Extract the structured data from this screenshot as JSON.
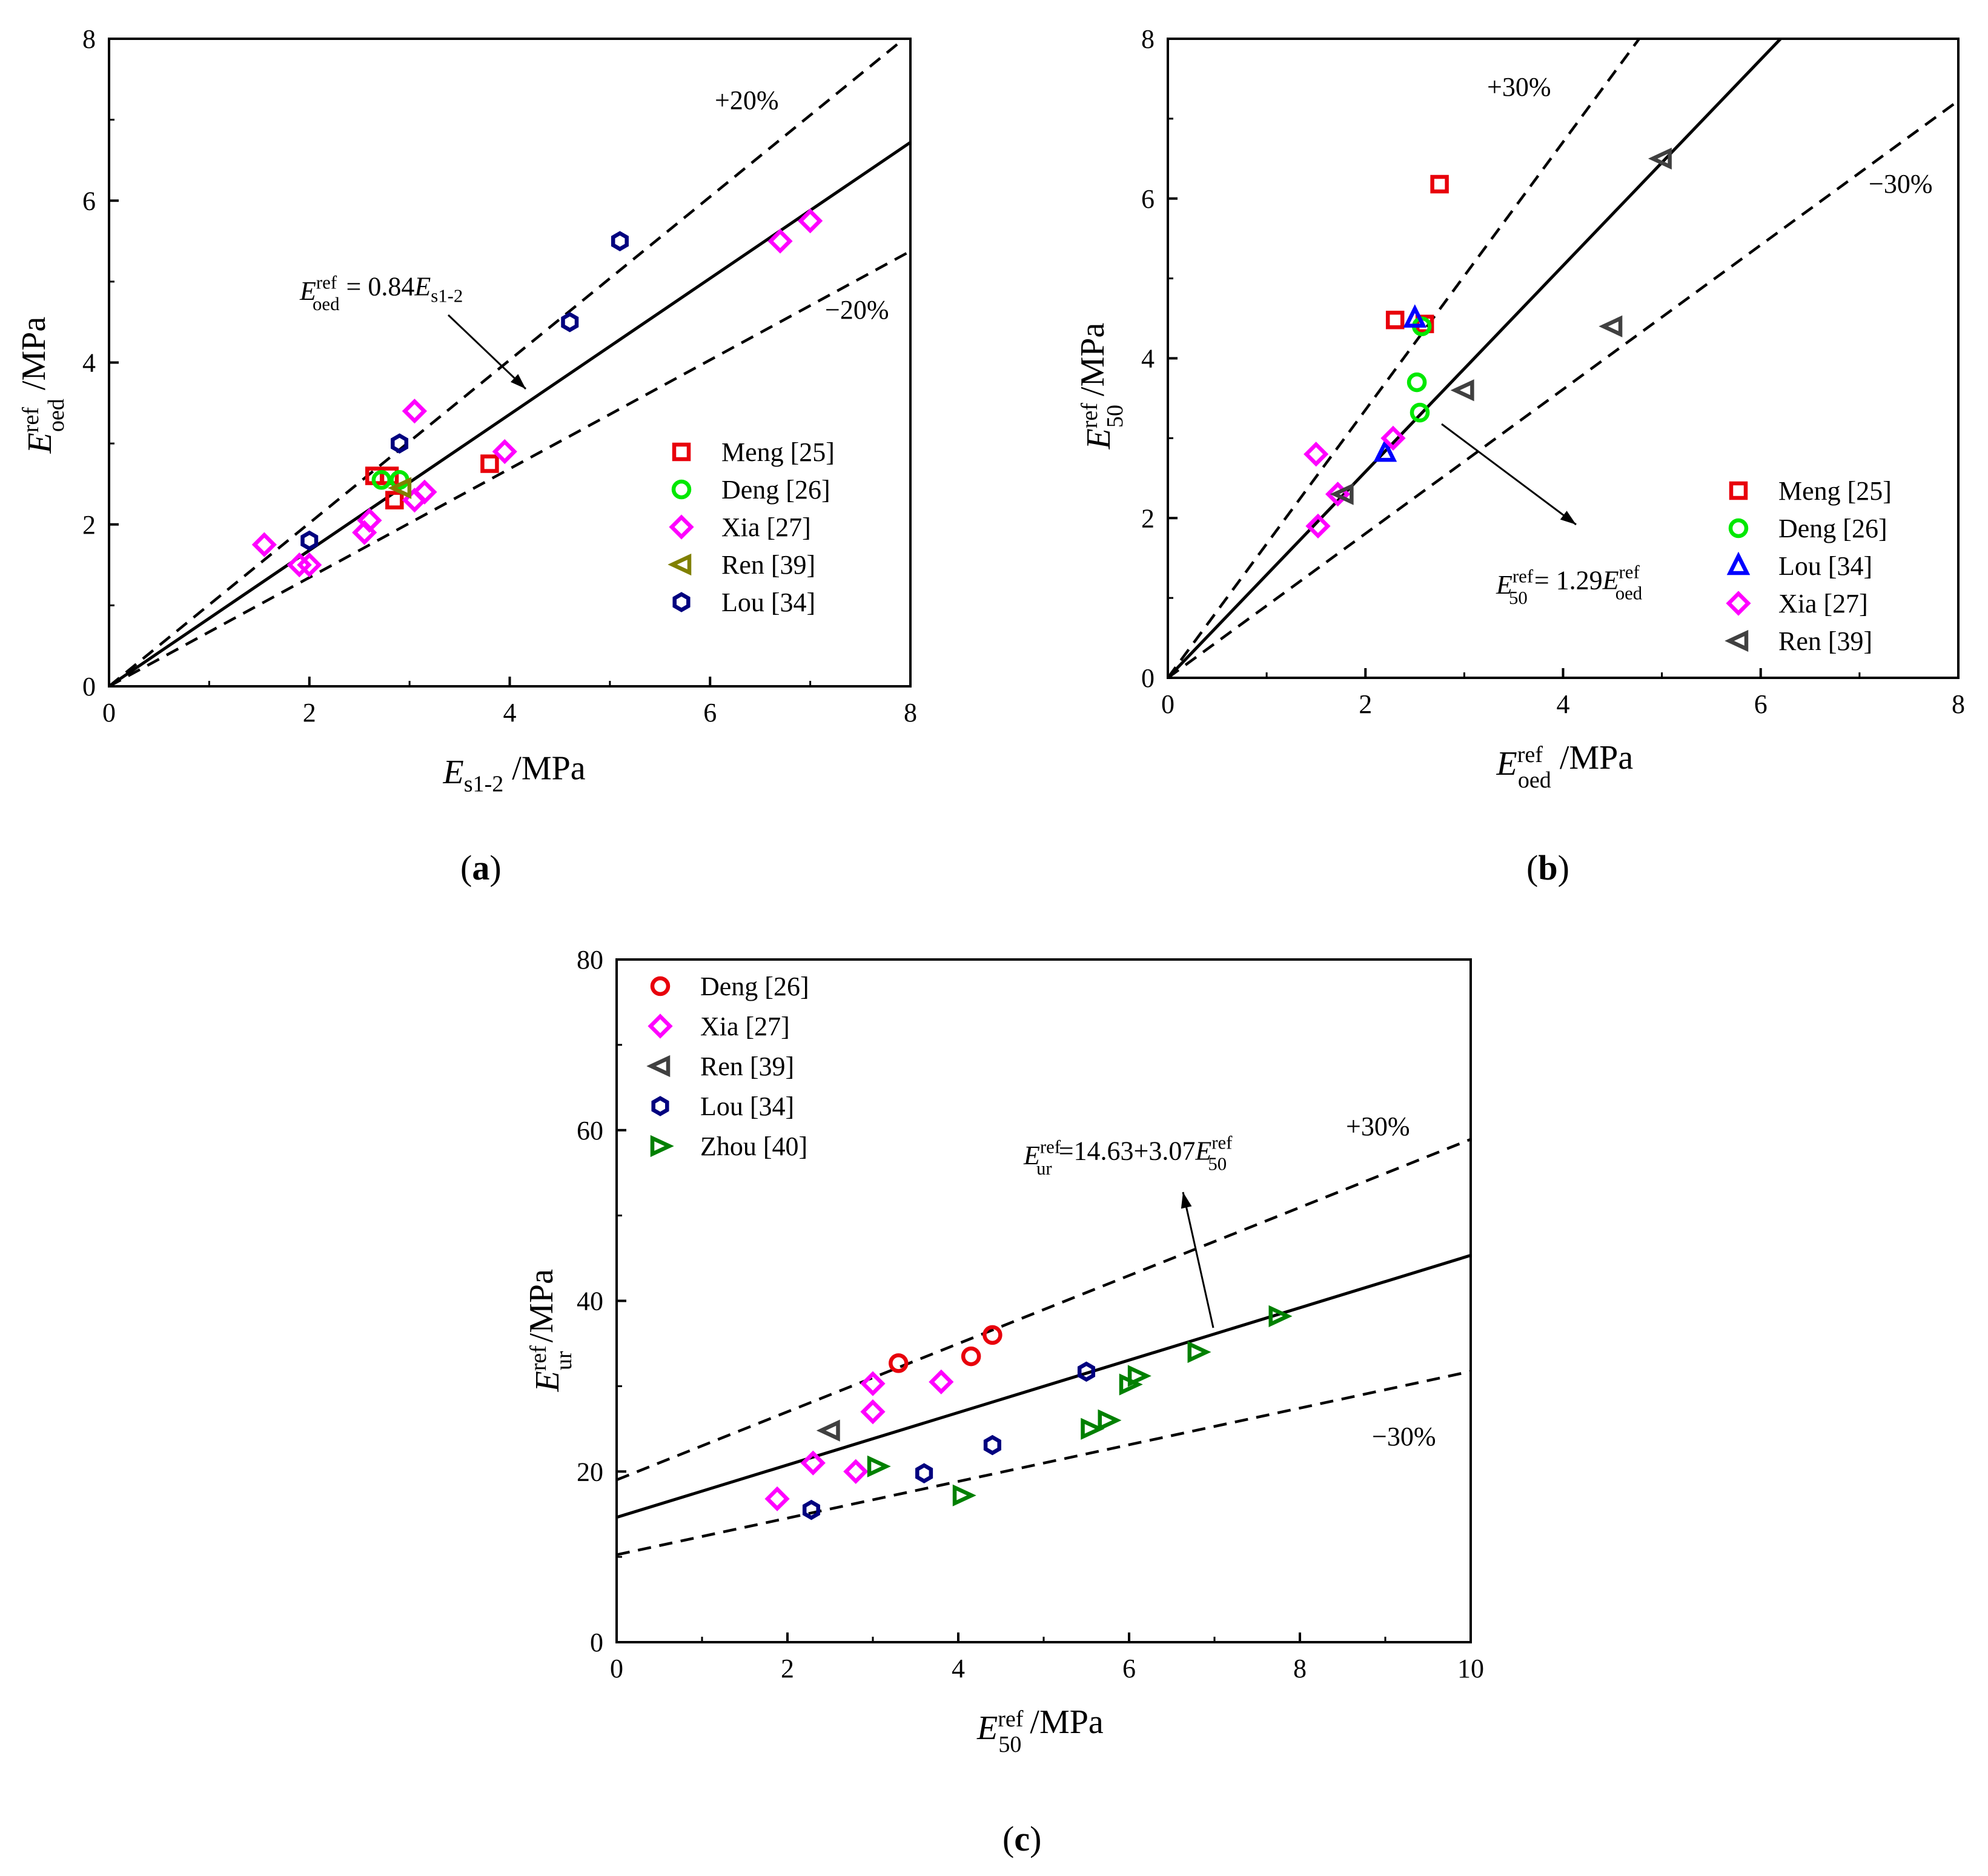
{
  "colors": {
    "Meng": "#e8000b",
    "Deng": "#00e800",
    "Xia": "#ff00ff",
    "Ren_a": "#808000",
    "Ren": "#404040",
    "Lou_a": "#00007f",
    "Lou_b": "#0000ff",
    "Lou_c": "#00007f",
    "Zhou": "#008000"
  },
  "chart_data": [
    {
      "panel": "a",
      "type": "scatter",
      "panel_label": "a",
      "xlabel": {
        "main": "E",
        "sub": "s1-2",
        "unit": " /MPa"
      },
      "ylabel": {
        "main": "E",
        "sup": "ref",
        "sub": "oed",
        "unit": " /MPa"
      },
      "xlim": [
        0,
        8
      ],
      "ylim": [
        0,
        8
      ],
      "xticks": [
        "0",
        "2",
        "4",
        "6",
        "8"
      ],
      "yticks": [
        "0",
        "2",
        "4",
        "6",
        "8"
      ],
      "fit": {
        "slope": 0.84,
        "intercept": 0,
        "label_lhs": "E",
        "label_sup": "ref",
        "label_sub": "oed",
        "label_rhs": " = 0.84",
        "label_rhs_var": "E",
        "label_rhs_sub": "s1-2"
      },
      "bands": [
        {
          "factor": 1.2,
          "label": "+20%"
        },
        {
          "factor": 0.8,
          "label": "−20%"
        }
      ],
      "legend_position": "bottom-right",
      "series": [
        {
          "name": "Meng [25]",
          "marker": "square",
          "color_key": "Meng",
          "points": [
            [
              2.65,
              2.6
            ],
            [
              2.8,
              2.6
            ],
            [
              2.85,
              2.3
            ],
            [
              3.8,
              2.75
            ]
          ]
        },
        {
          "name": "Deng [26]",
          "marker": "circle",
          "color_key": "Deng",
          "points": [
            [
              2.72,
              2.55
            ],
            [
              2.9,
              2.55
            ]
          ]
        },
        {
          "name": "Xia [27]",
          "marker": "diamond",
          "color_key": "Xia",
          "points": [
            [
              1.55,
              1.75
            ],
            [
              1.9,
              1.5
            ],
            [
              2.0,
              1.5
            ],
            [
              2.55,
              1.9
            ],
            [
              2.6,
              2.05
            ],
            [
              3.05,
              2.3
            ],
            [
              3.15,
              2.4
            ],
            [
              3.05,
              3.4
            ],
            [
              3.95,
              2.9
            ],
            [
              6.7,
              5.5
            ],
            [
              7.0,
              5.75
            ]
          ]
        },
        {
          "name": "Ren [39]",
          "marker": "triangle-left",
          "color_key": "Ren_a",
          "points": [
            [
              2.92,
              2.45
            ]
          ]
        },
        {
          "name": "Lou [34]",
          "marker": "hexagon",
          "color_key": "Lou_a",
          "points": [
            [
              2.0,
              1.8
            ],
            [
              2.9,
              3.0
            ],
            [
              4.6,
              4.5
            ],
            [
              5.1,
              5.5
            ]
          ]
        }
      ]
    },
    {
      "panel": "b",
      "type": "scatter",
      "panel_label": "b",
      "xlabel": {
        "main": "E",
        "sup": "ref",
        "sub": "oed",
        "unit": " /MPa"
      },
      "ylabel": {
        "main": "E",
        "sup": "ref",
        "sub": "50",
        "unit": " /MPa"
      },
      "xlim": [
        0,
        8
      ],
      "ylim": [
        0,
        8
      ],
      "xticks": [
        "0",
        "2",
        "4",
        "6",
        "8"
      ],
      "yticks": [
        "0",
        "2",
        "4",
        "6",
        "8"
      ],
      "fit": {
        "slope": 1.29,
        "intercept": 0,
        "label_lhs": "E",
        "label_sup": "ref",
        "label_sub": "50",
        "label_rhs": " = 1.29",
        "label_rhs_var": "E",
        "label_rhs_sup": "ref",
        "label_rhs_sub": "oed"
      },
      "bands": [
        {
          "factor": 1.3,
          "label": "+30%"
        },
        {
          "factor": 0.7,
          "label": "−30%"
        }
      ],
      "legend_position": "bottom-right",
      "series": [
        {
          "name": "Meng [25]",
          "marker": "square",
          "color_key": "Meng",
          "points": [
            [
              2.3,
              4.48
            ],
            [
              2.6,
              4.43
            ],
            [
              2.75,
              6.18
            ]
          ]
        },
        {
          "name": "Deng [26]",
          "marker": "circle",
          "color_key": "Deng",
          "points": [
            [
              2.52,
              3.7
            ],
            [
              2.55,
              3.32
            ],
            [
              2.57,
              4.4
            ]
          ]
        },
        {
          "name": "Lou [34]",
          "marker": "triangle-up",
          "color_key": "Lou_b",
          "points": [
            [
              2.2,
              2.82
            ],
            [
              2.5,
              4.5
            ]
          ]
        },
        {
          "name": "Xia [27]",
          "marker": "diamond",
          "color_key": "Xia",
          "points": [
            [
              1.5,
              2.8
            ],
            [
              1.52,
              1.9
            ],
            [
              1.72,
              2.3
            ],
            [
              2.28,
              3.0
            ]
          ]
        },
        {
          "name": "Ren [39]",
          "marker": "triangle-left",
          "color_key": "Ren",
          "points": [
            [
              1.78,
              2.3
            ],
            [
              3.0,
              3.6
            ],
            [
              4.5,
              4.4
            ],
            [
              5.0,
              6.5
            ]
          ]
        }
      ]
    },
    {
      "panel": "c",
      "type": "scatter",
      "panel_label": "c",
      "xlabel": {
        "main": "E",
        "sup": "ref",
        "sub": "50",
        "unit": " /MPa"
      },
      "ylabel": {
        "main": "E",
        "sup": "ref",
        "sub": "ur",
        "unit": " /MPa"
      },
      "xlim": [
        0,
        10
      ],
      "ylim": [
        0,
        80
      ],
      "xticks": [
        "0",
        "2",
        "4",
        "6",
        "8",
        "10"
      ],
      "yticks": [
        "0",
        "20",
        "40",
        "60",
        "80"
      ],
      "fit": {
        "slope": 3.07,
        "intercept": 14.63,
        "label_lhs": "E",
        "label_sup": "ref",
        "label_sub": "ur",
        "label_rhs": " =14.63+3.07",
        "label_rhs_var": "E",
        "label_rhs_sup": "ref",
        "label_rhs_sub": "50"
      },
      "bands": [
        {
          "factor": 1.3,
          "label": "+30%"
        },
        {
          "factor": 0.7,
          "label": "−30%"
        }
      ],
      "legend_position": "top-left",
      "series": [
        {
          "name": "Deng [26]",
          "marker": "circle",
          "color_key": "Meng",
          "points": [
            [
              3.3,
              32.7
            ],
            [
              4.15,
              33.5
            ],
            [
              4.4,
              36.0
            ]
          ]
        },
        {
          "name": "Xia [27]",
          "marker": "diamond",
          "color_key": "Xia",
          "points": [
            [
              1.88,
              16.8
            ],
            [
              2.3,
              21.0
            ],
            [
              2.8,
              20.0
            ],
            [
              3.0,
              27.0
            ],
            [
              3.0,
              30.3
            ],
            [
              3.8,
              30.5
            ]
          ]
        },
        {
          "name": "Ren [39]",
          "marker": "triangle-left",
          "color_key": "Ren",
          "points": [
            [
              2.5,
              24.8
            ]
          ]
        },
        {
          "name": "Lou [34]",
          "marker": "hexagon",
          "color_key": "Lou_c",
          "points": [
            [
              2.28,
              15.5
            ],
            [
              3.6,
              19.8
            ],
            [
              4.4,
              23.1
            ],
            [
              5.5,
              31.7
            ]
          ]
        },
        {
          "name": "Zhou [40]",
          "marker": "triangle-right",
          "color_key": "Zhou",
          "points": [
            [
              3.05,
              20.6
            ],
            [
              4.05,
              17.2
            ],
            [
              5.55,
              25.0
            ],
            [
              5.75,
              26.0
            ],
            [
              6.0,
              30.2
            ],
            [
              6.1,
              31.2
            ],
            [
              6.8,
              34.0
            ],
            [
              7.75,
              38.2
            ]
          ]
        }
      ]
    }
  ]
}
